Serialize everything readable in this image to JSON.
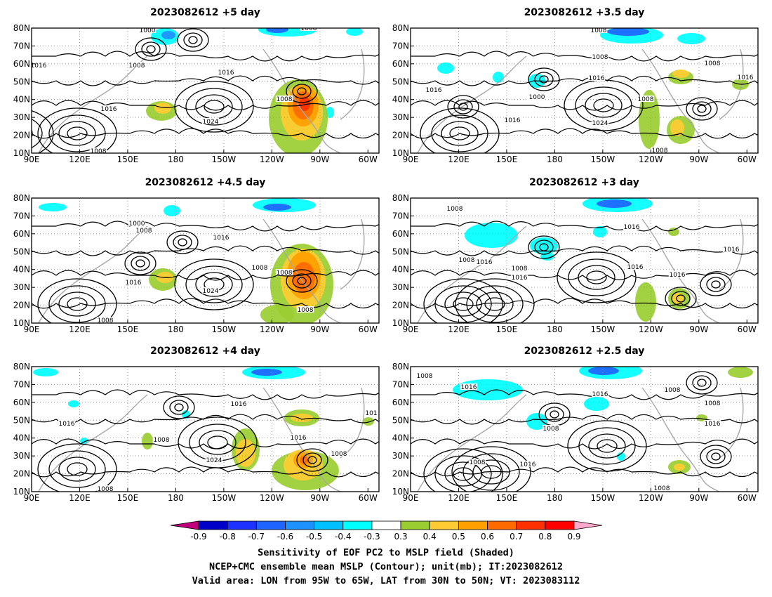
{
  "chart_data": {
    "panels": [
      {
        "title": "2023082612 +5 day",
        "type": "heatmap",
        "xticks": [
          "90E",
          "120E",
          "150E",
          "180",
          "150W",
          "120W",
          "90W",
          "60W"
        ],
        "yticks": [
          "10N",
          "20N",
          "30N",
          "40N",
          "50N",
          "60N",
          "70N",
          "80N"
        ],
        "xlim": [
          "90E",
          "50W"
        ],
        "ylim": [
          "10N",
          "80N"
        ],
        "contour_labels": [
          "1000",
          "1008",
          "1016",
          "1016",
          "1024",
          "1008",
          "1008",
          "1008",
          "1016"
        ]
      },
      {
        "title": "2023082612 +3.5 day",
        "type": "heatmap",
        "xticks": [
          "90E",
          "120E",
          "150E",
          "180",
          "150W",
          "120W",
          "90W",
          "60W"
        ],
        "yticks": [
          "10N",
          "20N",
          "30N",
          "40N",
          "50N",
          "60N",
          "70N",
          "80N"
        ],
        "xlim": [
          "90E",
          "50W"
        ],
        "ylim": [
          "10N",
          "80N"
        ],
        "contour_labels": [
          "1008",
          "1008",
          "1016",
          "1000",
          "1016",
          "1016",
          "1024",
          "1008",
          "1016",
          "1008",
          "1008"
        ]
      },
      {
        "title": "2023082612 +4.5 day",
        "type": "heatmap",
        "xticks": [
          "90E",
          "120E",
          "150E",
          "180",
          "150W",
          "120W",
          "90W",
          "60W"
        ],
        "yticks": [
          "10N",
          "20N",
          "30N",
          "40N",
          "50N",
          "60N",
          "70N",
          "80N"
        ],
        "xlim": [
          "90E",
          "50W"
        ],
        "ylim": [
          "10N",
          "80N"
        ],
        "contour_labels": [
          "1000",
          "1008",
          "1016",
          "1016",
          "1024",
          "1008",
          "1008",
          "1008",
          "1008"
        ]
      },
      {
        "title": "2023082612 +3 day",
        "type": "heatmap",
        "xticks": [
          "90E",
          "120E",
          "150E",
          "180",
          "150W",
          "120W",
          "90W",
          "60W"
        ],
        "yticks": [
          "10N",
          "20N",
          "30N",
          "40N",
          "50N",
          "60N",
          "70N",
          "80N"
        ],
        "xlim": [
          "90E",
          "50W"
        ],
        "ylim": [
          "10N",
          "80N"
        ],
        "contour_labels": [
          "1008",
          "1016",
          "1008",
          "1016",
          "1008",
          "1016",
          "1016",
          "1016",
          "1016"
        ]
      },
      {
        "title": "2023082612 +4 day",
        "type": "heatmap",
        "xticks": [
          "90E",
          "120E",
          "150E",
          "180",
          "150W",
          "120W",
          "90W",
          "60W"
        ],
        "yticks": [
          "10N",
          "20N",
          "30N",
          "40N",
          "50N",
          "60N",
          "70N",
          "80N"
        ],
        "xlim": [
          "90E",
          "50W"
        ],
        "ylim": [
          "10N",
          "80N"
        ],
        "contour_labels": [
          "1016",
          "1016",
          "1008",
          "1024",
          "1016",
          "1008",
          "1008",
          "101"
        ]
      },
      {
        "title": "2023082612 +2.5 day",
        "type": "heatmap",
        "xticks": [
          "90E",
          "120E",
          "150E",
          "180",
          "150W",
          "120W",
          "90W",
          "60W"
        ],
        "yticks": [
          "10N",
          "20N",
          "30N",
          "40N",
          "50N",
          "60N",
          "70N",
          "80N"
        ],
        "xlim": [
          "90E",
          "50W"
        ],
        "ylim": [
          "10N",
          "80N"
        ],
        "contour_labels": [
          "1008",
          "1016",
          "1016",
          "1008",
          "1008",
          "1008",
          "1008",
          "1016",
          "1016",
          "1008"
        ]
      }
    ],
    "colorbar": {
      "labels": [
        "-0.9",
        "-0.8",
        "-0.7",
        "-0.6",
        "-0.5",
        "-0.4",
        "-0.3",
        "0.3",
        "0.4",
        "0.5",
        "0.6",
        "0.7",
        "0.8",
        "0.9"
      ],
      "colors": [
        "#c0007a",
        "#0000c8",
        "#1e32ff",
        "#1f64ff",
        "#1e90ff",
        "#00c0ff",
        "#00ffff",
        "#ffffff",
        "#9acd32",
        "#ffcc33",
        "#ffa000",
        "#ff6a00",
        "#ff3000",
        "#ff0000",
        "#ffaacc"
      ]
    },
    "caption": [
      "Sensitivity of EOF PC2 to MSLP field (Shaded)",
      "NCEP+CMC ensemble mean MSLP (Contour); unit(mb); IT:2023082612",
      "Valid area: LON from 95W to 65W, LAT from 30N to 50N; VT: 2023083112"
    ]
  }
}
